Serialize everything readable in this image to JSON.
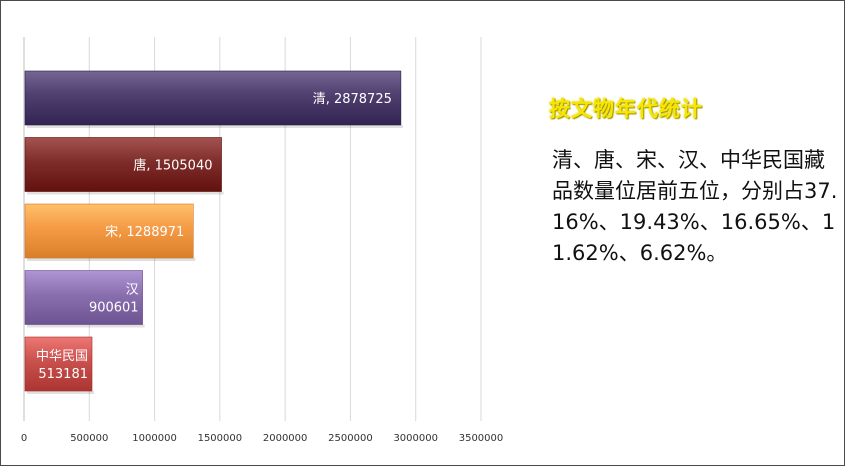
{
  "chart_data": {
    "type": "bar",
    "orientation": "horizontal",
    "categories": [
      "清",
      "唐",
      "宋",
      "汉",
      "中华民国"
    ],
    "values": [
      2878725,
      1505040,
      1288971,
      900601,
      513181
    ],
    "data_labels": [
      "清, 2878725",
      "唐, 1505040",
      "宋, 1288971",
      "汉, 900601",
      "中华民国, 513181"
    ],
    "colors": [
      "#4e3f6e",
      "#7e2d2a",
      "#f59a45",
      "#8a6fae",
      "#c8504d"
    ],
    "xlim": [
      0,
      3500000
    ],
    "xticks": [
      0,
      500000,
      1000000,
      1500000,
      2000000,
      2500000,
      3000000,
      3500000
    ],
    "xtick_labels": [
      "0",
      "500000",
      "1000000",
      "1500000",
      "2000000",
      "2500000",
      "3000000",
      "3500000"
    ],
    "grid": true,
    "legend": "none",
    "title": "",
    "xlabel": "",
    "ylabel": ""
  },
  "side_panel": {
    "title": "按文物年代统计",
    "text": "清、唐、宋、汉、中华民国藏品数量位居前五位，分别占37.16%、19.43%、16.65%、11.62%、6.62%。"
  }
}
